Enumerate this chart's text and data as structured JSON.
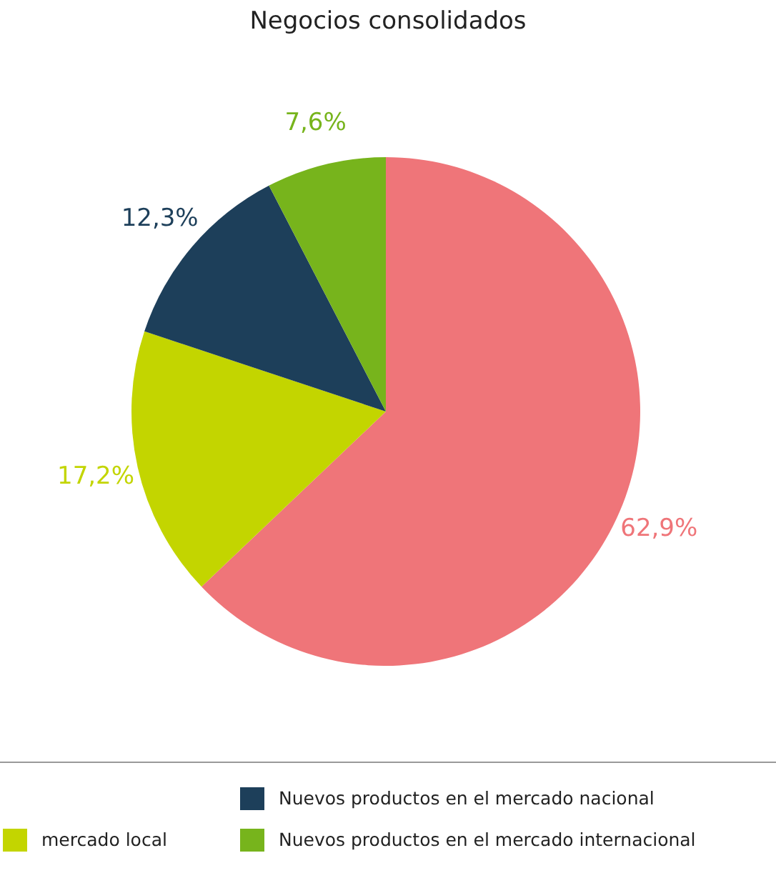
{
  "chart_data": {
    "type": "pie",
    "title": "Negocios consolidados",
    "categories": [
      null,
      "mercado local",
      "Nuevos productos en el mercado nacional",
      "Nuevos productos en el mercado internacional"
    ],
    "values": [
      62.9,
      17.2,
      12.3,
      7.6
    ],
    "colors": [
      "#ef7579",
      "#c3d500",
      "#1d3f5a",
      "#77b41c"
    ],
    "value_labels": [
      "62,9%",
      "17,2%",
      "12,3%",
      "7,6%"
    ],
    "legend": "bottom"
  }
}
